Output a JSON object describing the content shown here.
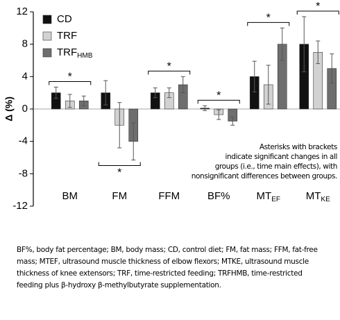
{
  "chart_data": {
    "type": "bar",
    "ylabel": "Δ (%)",
    "categories": [
      "BM",
      "FM",
      "FFM",
      "BF%",
      "MT",
      "MT"
    ],
    "category_subscripts": [
      null,
      null,
      null,
      null,
      "EF",
      "KE"
    ],
    "series": [
      {
        "name": "CD",
        "color": "#111111",
        "values": [
          2,
          2,
          2,
          0.1,
          4,
          8
        ],
        "errors": [
          0.7,
          1.5,
          0.6,
          0.3,
          1.9,
          3.4
        ]
      },
      {
        "name": "TRF",
        "color": "#d2d2d2",
        "values": [
          1,
          -2,
          2,
          -0.7,
          3,
          7
        ],
        "errors": [
          0.8,
          2.8,
          0.6,
          0.6,
          2.4,
          1.4
        ]
      },
      {
        "name": "TRF",
        "name_subscript": "HMB",
        "color": "#6e6e6e",
        "values": [
          1,
          -4,
          3,
          -1.5,
          8,
          5
        ],
        "errors": [
          0.6,
          2.3,
          1.0,
          0.5,
          2.0,
          1.8
        ]
      }
    ],
    "significance_markers": [
      "*",
      "*",
      "*",
      "*",
      "*",
      "*"
    ],
    "significance_side": [
      "above",
      "below",
      "above",
      "above",
      "above",
      "above"
    ],
    "note": [
      "Asterisks with brackets",
      "indicate significant changes in all",
      "groups (i.e., time main effects), with",
      "nonsignificant differences between groups."
    ],
    "ylim": [
      -12,
      12
    ],
    "yticks": [
      -12,
      -8,
      -4,
      0,
      4,
      8,
      12
    ],
    "legend": "upper left"
  },
  "caption": "BF%, body fat percentage; BM, body mass; CD, control diet; FM, fat mass; FFM, fat-free mass; MTEF, ultrasound muscle thickness of elbow flexors; MTKE, ultrasound muscle thickness of knee extensors; TRF, time-restricted feeding; TRFHMB, time-restricted feeding plus β-hydroxy β-methylbutyrate supplementation."
}
